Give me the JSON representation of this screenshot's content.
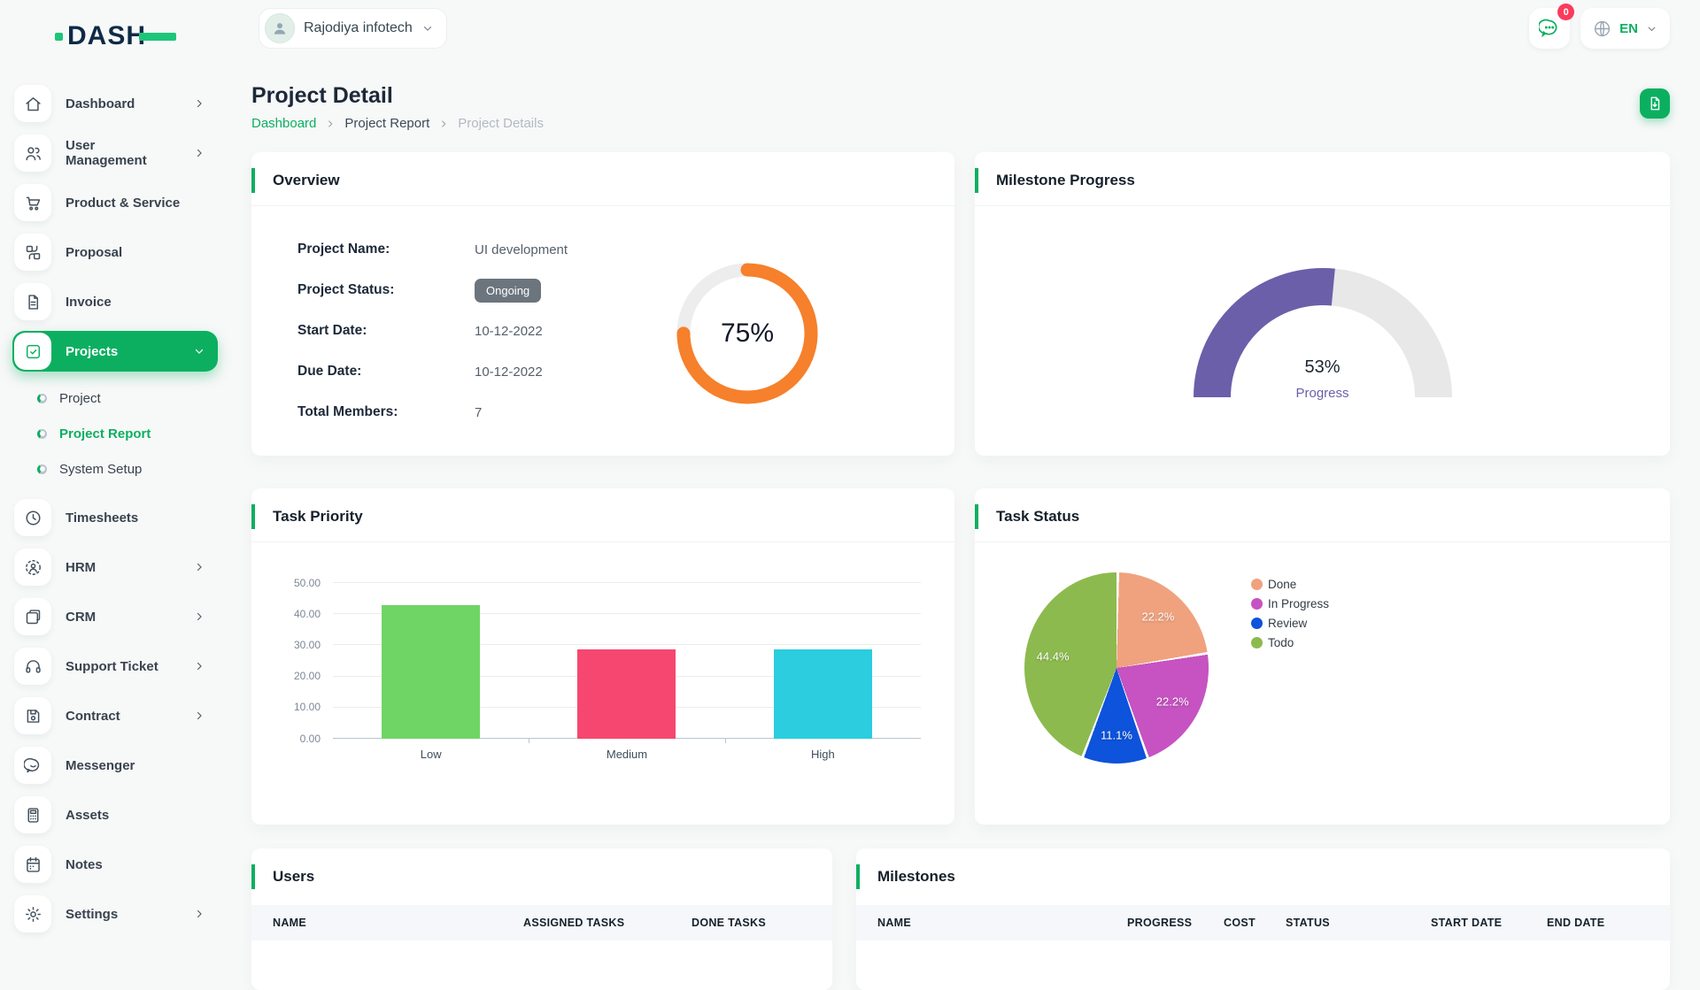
{
  "brand": {
    "name": "DASH"
  },
  "header": {
    "company": {
      "name": "Rajodiya infotech"
    },
    "notifications": {
      "count": "0",
      "icon": "chat-bubble-icon"
    },
    "language": {
      "code": "EN",
      "icon": "globe-icon"
    }
  },
  "sidebar": {
    "items": [
      {
        "id": "dashboard",
        "label": "Dashboard",
        "icon": "home-icon",
        "chevron": "right"
      },
      {
        "id": "user-management",
        "label": "User Management",
        "icon": "users-icon",
        "chevron": "right"
      },
      {
        "id": "product-service",
        "label": "Product & Service",
        "icon": "cart-icon"
      },
      {
        "id": "proposal",
        "label": "Proposal",
        "icon": "proposal-icon"
      },
      {
        "id": "invoice",
        "label": "Invoice",
        "icon": "invoice-icon"
      },
      {
        "id": "projects",
        "label": "Projects",
        "icon": "check-square-icon",
        "chevron": "down",
        "active": true,
        "subitems": [
          {
            "id": "project",
            "label": "Project"
          },
          {
            "id": "project-report",
            "label": "Project Report",
            "active": true
          },
          {
            "id": "system-setup",
            "label": "System Setup"
          }
        ]
      },
      {
        "id": "timesheets",
        "label": "Timesheets",
        "icon": "clock-icon"
      },
      {
        "id": "hrm",
        "label": "HRM",
        "icon": "hrm-icon",
        "chevron": "right"
      },
      {
        "id": "crm",
        "label": "CRM",
        "icon": "crm-icon",
        "chevron": "right"
      },
      {
        "id": "support-ticket",
        "label": "Support Ticket",
        "icon": "headset-icon",
        "chevron": "right"
      },
      {
        "id": "contract",
        "label": "Contract",
        "icon": "contract-icon",
        "chevron": "right"
      },
      {
        "id": "messenger",
        "label": "Messenger",
        "icon": "chat-icon"
      },
      {
        "id": "assets",
        "label": "Assets",
        "icon": "calculator-icon"
      },
      {
        "id": "notes",
        "label": "Notes",
        "icon": "notes-icon"
      },
      {
        "id": "settings",
        "label": "Settings",
        "icon": "gear-icon",
        "chevron": "right"
      }
    ]
  },
  "page": {
    "title": "Project Detail",
    "breadcrumb": [
      {
        "label": "Dashboard",
        "type": "link"
      },
      {
        "label": "Project Report",
        "type": "text"
      },
      {
        "label": "Project Details",
        "type": "current"
      }
    ],
    "export_button_icon": "file-export-icon"
  },
  "cards": {
    "overview": "Overview",
    "milestone": "Milestone Progress",
    "task_priority": "Task Priority",
    "task_status": "Task Status",
    "users": "Users",
    "milestones": "Milestones"
  },
  "overview": {
    "fields": [
      {
        "label": "Project Name:",
        "value": "UI development",
        "type": "text"
      },
      {
        "label": "Project Status:",
        "value": "Ongoing",
        "type": "badge"
      },
      {
        "label": "Start Date:",
        "value": "10-12-2022",
        "type": "text"
      },
      {
        "label": "Due Date:",
        "value": "10-12-2022",
        "type": "text"
      },
      {
        "label": "Total Members:",
        "value": "7",
        "type": "text"
      }
    ]
  },
  "chart_data": [
    {
      "id": "overview_progress",
      "type": "radial",
      "title": "Overview",
      "percent": 75,
      "center_label": "75%",
      "color": "#F6802B",
      "track": "#EDEDED"
    },
    {
      "id": "milestone_gauge",
      "type": "gauge",
      "title": "Milestone Progress",
      "percent": 53,
      "center_label": "53%",
      "caption": "Progress",
      "color": "#6B5FA9",
      "track": "#E8E8E8",
      "range": [
        0,
        100
      ]
    },
    {
      "id": "task_priority",
      "type": "bar",
      "title": "Task Priority",
      "categories": [
        "Low",
        "Medium",
        "High"
      ],
      "values": [
        42.86,
        28.57,
        28.57
      ],
      "colors": [
        "#6FD565",
        "#F5476F",
        "#2BCDDE"
      ],
      "ylim": [
        0,
        50
      ],
      "yticks": [
        0,
        10,
        20,
        30,
        40,
        50
      ],
      "ytick_labels": [
        "0.00",
        "10.00",
        "20.00",
        "30.00",
        "40.00",
        "50.00"
      ],
      "grid": true,
      "legend_position": "none"
    },
    {
      "id": "task_status",
      "type": "pie",
      "title": "Task Status",
      "series": [
        {
          "name": "Done",
          "value": 22.2,
          "label": "22.2%",
          "color": "#F0A27E"
        },
        {
          "name": "In Progress",
          "value": 22.2,
          "label": "22.2%",
          "color": "#C653C1"
        },
        {
          "name": "Review",
          "value": 11.1,
          "label": "11.1%",
          "color": "#0D53DB"
        },
        {
          "name": "Todo",
          "value": 44.4,
          "label": "44.4%",
          "color": "#8DBA4E"
        }
      ],
      "legend_position": "right"
    }
  ],
  "users_table": {
    "columns": [
      "NAME",
      "ASSIGNED TASKS",
      "DONE TASKS"
    ]
  },
  "milestones_table": {
    "columns": [
      "NAME",
      "PROGRESS",
      "COST",
      "STATUS",
      "START DATE",
      "END DATE"
    ]
  }
}
